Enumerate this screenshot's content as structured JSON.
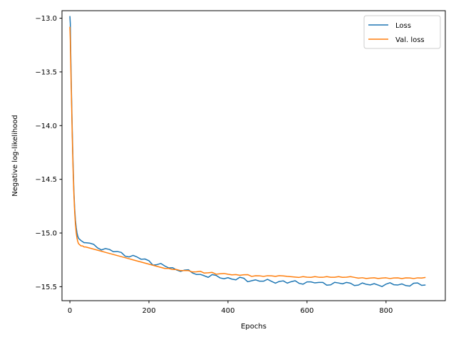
{
  "chart_data": {
    "type": "line",
    "title": "",
    "xlabel": "Epochs",
    "ylabel": "Negative log-likelihood",
    "xlim": [
      -20,
      950
    ],
    "ylim": [
      -15.63,
      -12.93
    ],
    "xticks": [
      0,
      200,
      400,
      600,
      800
    ],
    "xtick_labels": [
      "0",
      "200",
      "400",
      "600",
      "800"
    ],
    "yticks": [
      -13.0,
      -13.5,
      -14.0,
      -14.5,
      -15.0,
      -15.5
    ],
    "ytick_labels": [
      "−13.0",
      "−13.5",
      "−14.0",
      "−14.5",
      "−15.0",
      "−15.5"
    ],
    "grid": false,
    "legend_position": "top-right",
    "series": [
      {
        "name": "Loss",
        "color": "#1f77b4",
        "x": [
          0,
          1,
          2,
          4,
          6,
          8,
          10,
          12,
          14,
          16,
          18,
          20,
          22,
          25,
          28,
          32,
          36,
          40,
          50,
          60,
          70,
          80,
          90,
          100,
          110,
          120,
          130,
          140,
          150,
          160,
          170,
          180,
          190,
          200,
          210,
          220,
          230,
          240,
          250,
          260,
          270,
          280,
          290,
          300,
          310,
          320,
          330,
          340,
          350,
          360,
          370,
          380,
          390,
          400,
          410,
          420,
          430,
          440,
          450,
          460,
          470,
          480,
          490,
          500,
          510,
          520,
          530,
          540,
          550,
          560,
          570,
          580,
          590,
          600,
          610,
          620,
          630,
          640,
          650,
          660,
          670,
          680,
          690,
          700,
          710,
          720,
          730,
          740,
          750,
          760,
          770,
          780,
          790,
          800,
          810,
          820,
          830,
          840,
          850,
          860,
          870,
          880,
          890,
          900
        ],
        "y": [
          -12.98,
          -13.05,
          -13.3,
          -13.7,
          -14.05,
          -14.35,
          -14.6,
          -14.77,
          -14.88,
          -14.95,
          -15.0,
          -15.03,
          -15.05,
          -15.06,
          -15.07,
          -15.08,
          -15.09,
          -15.09,
          -15.1,
          -15.12,
          -15.13,
          -15.14,
          -15.15,
          -15.16,
          -15.17,
          -15.18,
          -15.19,
          -15.2,
          -15.21,
          -15.22,
          -15.23,
          -15.24,
          -15.25,
          -15.26,
          -15.28,
          -15.29,
          -15.3,
          -15.31,
          -15.32,
          -15.33,
          -15.34,
          -15.34,
          -15.35,
          -15.36,
          -15.37,
          -15.38,
          -15.39,
          -15.39,
          -15.4,
          -15.4,
          -15.41,
          -15.41,
          -15.42,
          -15.42,
          -15.42,
          -15.43,
          -15.43,
          -15.43,
          -15.44,
          -15.44,
          -15.44,
          -15.44,
          -15.45,
          -15.45,
          -15.45,
          -15.45,
          -15.45,
          -15.45,
          -15.46,
          -15.46,
          -15.46,
          -15.46,
          -15.46,
          -15.46,
          -15.46,
          -15.46,
          -15.47,
          -15.47,
          -15.47,
          -15.47,
          -15.47,
          -15.47,
          -15.47,
          -15.47,
          -15.47,
          -15.47,
          -15.48,
          -15.48,
          -15.48,
          -15.48,
          -15.48,
          -15.48,
          -15.48,
          -15.48,
          -15.48,
          -15.48,
          -15.48,
          -15.48,
          -15.48,
          -15.48,
          -15.48,
          -15.48,
          -15.48,
          -15.48
        ]
      },
      {
        "name": "Val. loss",
        "color": "#ff7f0e",
        "x": [
          0,
          1,
          2,
          4,
          6,
          8,
          10,
          12,
          14,
          16,
          18,
          20,
          22,
          25,
          28,
          32,
          36,
          40,
          50,
          60,
          70,
          80,
          90,
          100,
          110,
          120,
          130,
          140,
          150,
          160,
          170,
          180,
          190,
          200,
          210,
          220,
          230,
          240,
          250,
          260,
          270,
          280,
          290,
          300,
          310,
          320,
          330,
          340,
          350,
          360,
          370,
          380,
          390,
          400,
          410,
          420,
          430,
          440,
          450,
          460,
          470,
          480,
          490,
          500,
          510,
          520,
          530,
          540,
          550,
          560,
          570,
          580,
          590,
          600,
          610,
          620,
          630,
          640,
          650,
          660,
          670,
          680,
          690,
          700,
          710,
          720,
          730,
          740,
          750,
          760,
          770,
          780,
          790,
          800,
          810,
          820,
          830,
          840,
          850,
          860,
          870,
          880,
          890,
          900
        ],
        "y": [
          -13.08,
          -13.2,
          -13.4,
          -13.75,
          -14.1,
          -14.4,
          -14.63,
          -14.8,
          -14.92,
          -15.0,
          -15.05,
          -15.08,
          -15.1,
          -15.11,
          -15.12,
          -15.12,
          -15.13,
          -15.13,
          -15.14,
          -15.15,
          -15.16,
          -15.17,
          -15.18,
          -15.19,
          -15.2,
          -15.21,
          -15.22,
          -15.23,
          -15.24,
          -15.25,
          -15.26,
          -15.27,
          -15.28,
          -15.29,
          -15.3,
          -15.31,
          -15.32,
          -15.33,
          -15.33,
          -15.34,
          -15.34,
          -15.35,
          -15.35,
          -15.35,
          -15.36,
          -15.36,
          -15.36,
          -15.37,
          -15.37,
          -15.37,
          -15.38,
          -15.38,
          -15.38,
          -15.38,
          -15.39,
          -15.39,
          -15.39,
          -15.39,
          -15.39,
          -15.4,
          -15.4,
          -15.4,
          -15.4,
          -15.4,
          -15.4,
          -15.4,
          -15.4,
          -15.4,
          -15.4,
          -15.41,
          -15.41,
          -15.41,
          -15.41,
          -15.41,
          -15.41,
          -15.41,
          -15.41,
          -15.41,
          -15.41,
          -15.41,
          -15.41,
          -15.41,
          -15.41,
          -15.41,
          -15.41,
          -15.41,
          -15.42,
          -15.42,
          -15.42,
          -15.42,
          -15.42,
          -15.42,
          -15.42,
          -15.42,
          -15.42,
          -15.42,
          -15.42,
          -15.42,
          -15.42,
          -15.42,
          -15.42,
          -15.42,
          -15.42,
          -15.41
        ]
      }
    ]
  }
}
